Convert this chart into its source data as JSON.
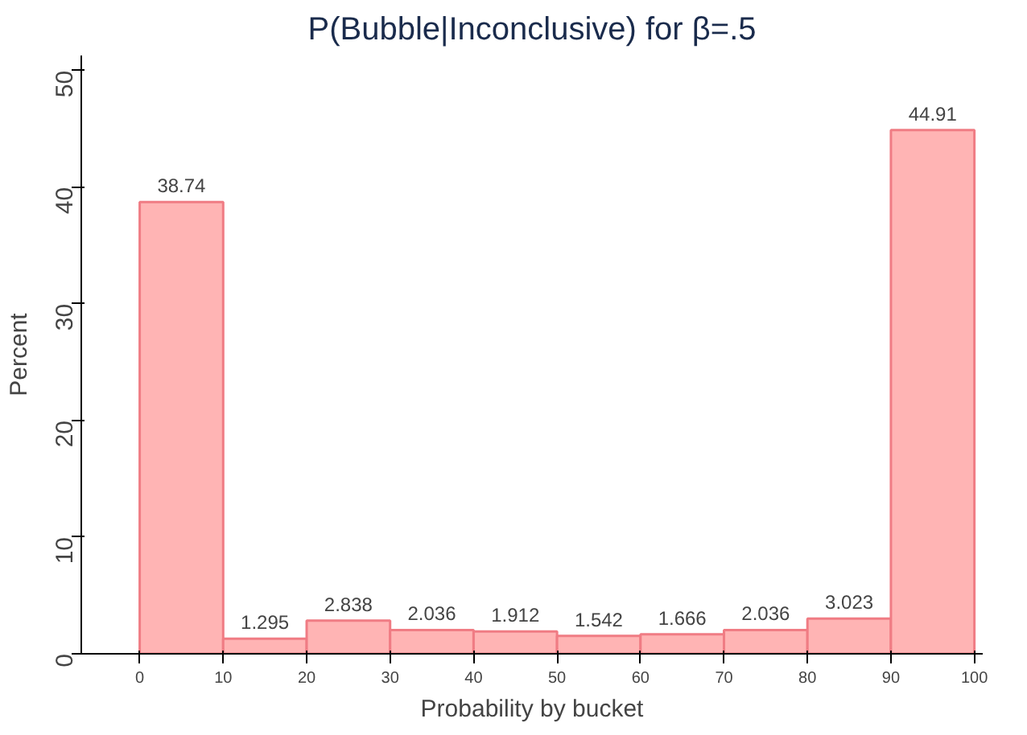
{
  "chart_data": {
    "type": "histogram",
    "title": "P(Bubble|Inconclusive) for β=.5",
    "xlabel": "Probability by bucket",
    "ylabel": "Percent",
    "bins": [
      0,
      10,
      20,
      30,
      40,
      50,
      60,
      70,
      80,
      90,
      100
    ],
    "values": [
      38.74,
      1.295,
      2.838,
      2.036,
      1.912,
      1.542,
      1.666,
      2.036,
      3.023,
      44.91
    ],
    "color": "#ffb4b4",
    "xlim": [
      -7,
      101
    ],
    "xticks": [
      0,
      10,
      20,
      30,
      40,
      50,
      60,
      70,
      80,
      90,
      100
    ],
    "ylim": [
      0,
      51.3
    ],
    "yticks": [
      0,
      10,
      20,
      30,
      40,
      50
    ],
    "data_labels": true,
    "grid": false
  }
}
